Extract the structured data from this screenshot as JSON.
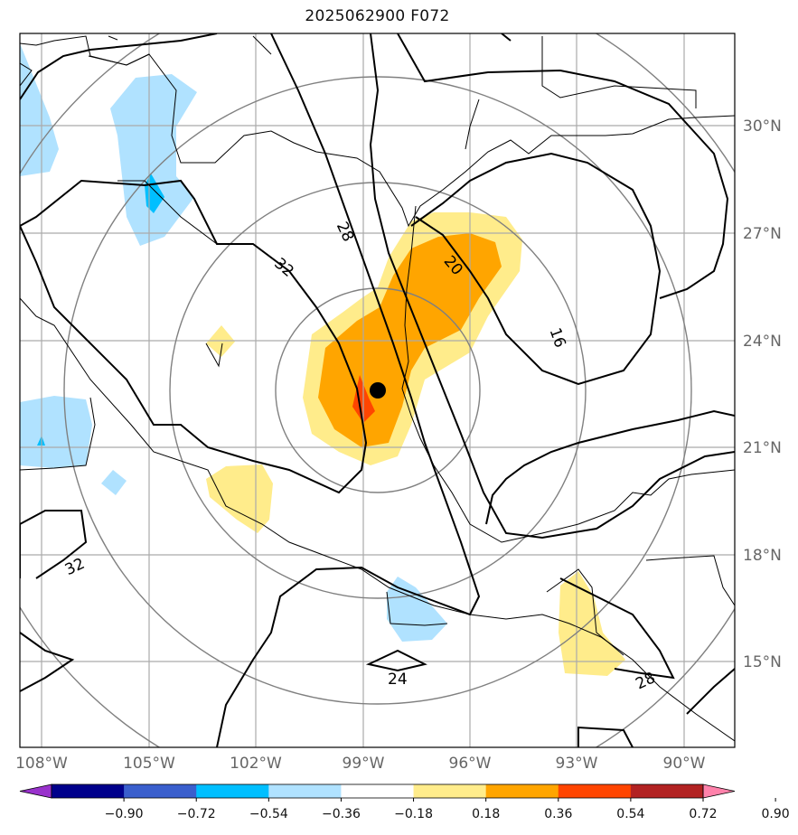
{
  "title": "2025062900 F072",
  "lat_labels": [
    "30°N",
    "27°N",
    "24°N",
    "21°N",
    "18°N",
    "15°N"
  ],
  "lon_labels": [
    "108°W",
    "105°W",
    "102°W",
    "99°W",
    "96°W",
    "93°W",
    "90°W"
  ],
  "contour_labels": [
    "32",
    "28",
    "20",
    "16",
    "32",
    "24",
    "28"
  ],
  "colorbar": {
    "ticks": [
      "−0.90",
      "−0.72",
      "−0.54",
      "−0.36",
      "−0.18",
      "0.18",
      "0.36",
      "0.54",
      "0.72",
      "0.90"
    ],
    "colors": [
      "#9932cc",
      "#00008b",
      "#3a5fcd",
      "#00bfff",
      "#b0e2ff",
      "#ffffff",
      "#ffec8b",
      "#ffa500",
      "#ff4500",
      "#b22222",
      "#ff82ab"
    ]
  },
  "marker": "storm-center"
}
